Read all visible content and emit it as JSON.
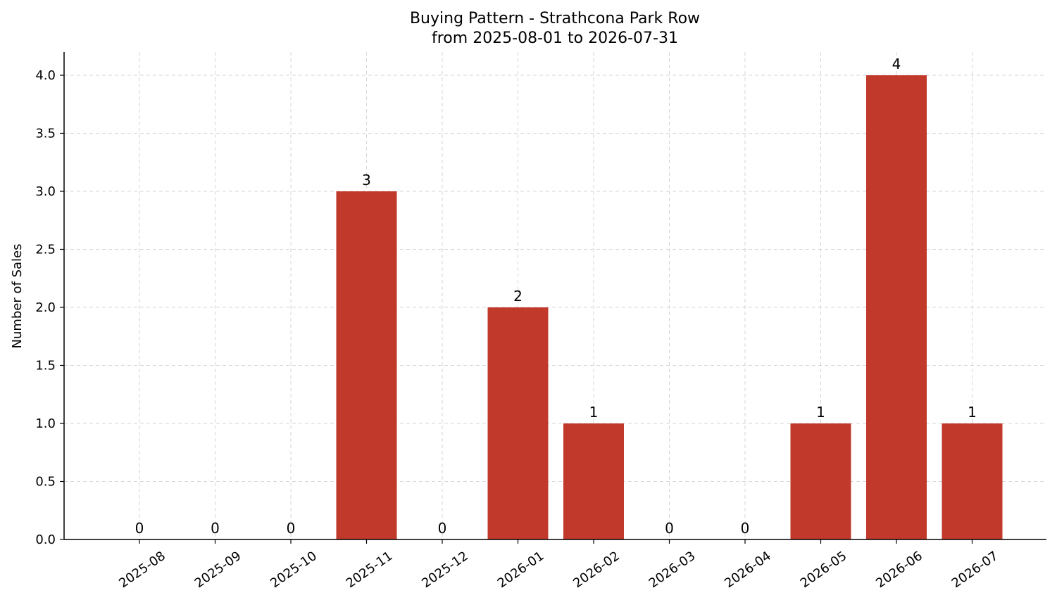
{
  "chart_data": {
    "type": "bar",
    "title_line1": "Buying Pattern - Strathcona Park Row",
    "title_line2": "from 2025-08-01 to 2026-07-31",
    "xlabel": "",
    "ylabel": "Number of Sales",
    "categories": [
      "2025-08",
      "2025-09",
      "2025-10",
      "2025-11",
      "2025-12",
      "2026-01",
      "2026-02",
      "2026-03",
      "2026-04",
      "2026-05",
      "2026-06",
      "2026-07"
    ],
    "values": [
      0,
      0,
      0,
      3,
      0,
      2,
      1,
      0,
      0,
      1,
      4,
      1
    ],
    "data_labels": [
      "0",
      "0",
      "0",
      "3",
      "0",
      "2",
      "1",
      "0",
      "0",
      "1",
      "4",
      "1"
    ],
    "ylim": [
      0,
      4.2
    ],
    "yticks": [
      0.0,
      0.5,
      1.0,
      1.5,
      2.0,
      2.5,
      3.0,
      3.5,
      4.0
    ],
    "ytick_labels": [
      "0.0",
      "0.5",
      "1.0",
      "1.5",
      "2.0",
      "2.5",
      "3.0",
      "3.5",
      "4.0"
    ],
    "grid": true,
    "legend": "none",
    "bar_color": "#c0392b",
    "grid_color": "#cccccc"
  }
}
